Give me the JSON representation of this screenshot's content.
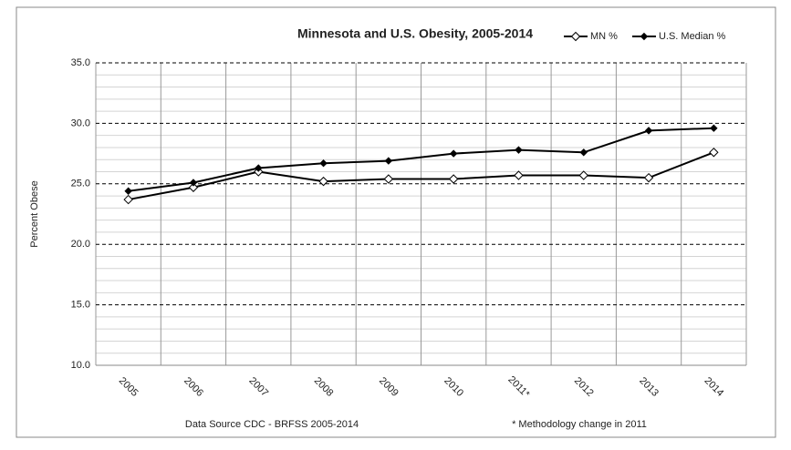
{
  "chart_data": {
    "type": "line",
    "title": "Minnesota and U.S. Obesity, 2005-2014",
    "y_label": "Percent Obese",
    "annotations": [
      "Data Source CDC - BRFSS 2005-2014",
      "* Methodology change in 2011"
    ],
    "categories": [
      "2005",
      "2006",
      "2007",
      "2008",
      "2009",
      "2010",
      "2011*",
      "2012",
      "2013",
      "2014"
    ],
    "series": [
      {
        "name": "MN %",
        "color": "#000000",
        "marker": "open-diamond",
        "values": [
          23.7,
          24.7,
          26.0,
          25.2,
          25.4,
          25.4,
          25.7,
          25.7,
          25.5,
          27.6
        ]
      },
      {
        "name": "U.S. Median %",
        "color": "#000000",
        "marker": "filled-diamond",
        "values": [
          24.4,
          25.1,
          26.3,
          26.7,
          26.9,
          27.5,
          27.8,
          27.6,
          29.4,
          29.6
        ]
      }
    ],
    "ylim": [
      10,
      35
    ],
    "yticks": [
      {
        "value": 10,
        "label": "10.0"
      },
      {
        "value": 15,
        "label": "15.0"
      },
      {
        "value": 20,
        "label": "20.0"
      },
      {
        "value": 25,
        "label": "25.0"
      },
      {
        "value": 30,
        "label": "30.0"
      },
      {
        "value": 35,
        "label": "35.0"
      }
    ],
    "minor_yticks": [
      11,
      12,
      13,
      14,
      16,
      17,
      18,
      19,
      21,
      22,
      23,
      24,
      26,
      27,
      28,
      29,
      31,
      32,
      33,
      34
    ],
    "grid": true,
    "legend": "top"
  }
}
